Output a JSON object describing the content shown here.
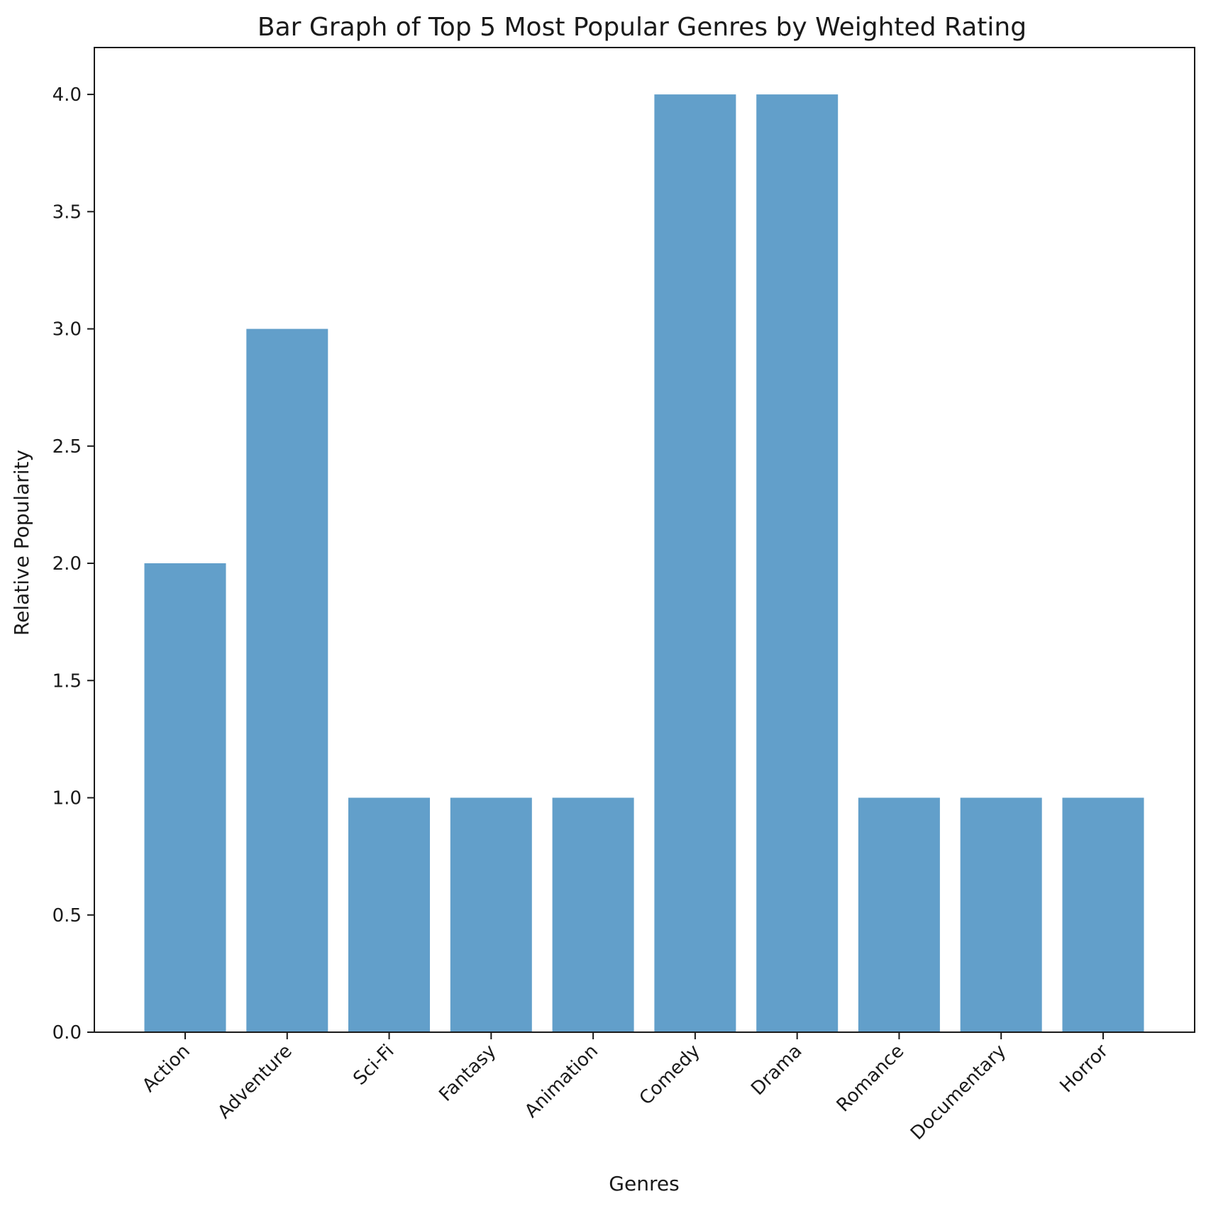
{
  "chart_data": {
    "type": "bar",
    "title": "Bar Graph of Top 5 Most Popular Genres by Weighted Rating",
    "xlabel": "Genres",
    "ylabel": "Relative Popularity",
    "categories": [
      "Action",
      "Adventure",
      "Sci-Fi",
      "Fantasy",
      "Animation",
      "Comedy",
      "Drama",
      "Romance",
      "Documentary",
      "Horror"
    ],
    "values": [
      2,
      3,
      1,
      1,
      1,
      4,
      4,
      1,
      1,
      1
    ],
    "ylim": [
      0,
      4.2
    ],
    "yticks": [
      "0.0",
      "0.5",
      "1.0",
      "1.5",
      "2.0",
      "2.5",
      "3.0",
      "3.5",
      "4.0"
    ],
    "grid": false,
    "bar_color": "#629fca"
  }
}
